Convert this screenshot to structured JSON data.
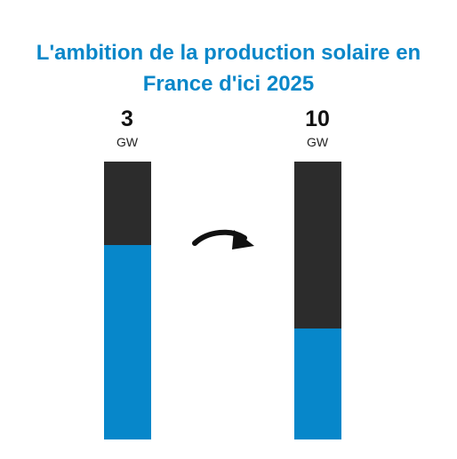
{
  "chart_data": {
    "type": "bar",
    "title": "L'ambition de la production solaire en France d'ici 2025",
    "categories": [
      "",
      ""
    ],
    "bars": [
      {
        "value_label": "3",
        "unit": "GW",
        "fill_fraction": 0.7
      },
      {
        "value_label": "10",
        "unit": "GW",
        "fill_fraction": 0.4
      }
    ],
    "colors": {
      "title": "#0a87c9",
      "fill": "#0787ca",
      "track": "#2c2c2c",
      "arrow": "#111111"
    },
    "arrow": {
      "icon": "curved-arrow-right-icon"
    }
  }
}
